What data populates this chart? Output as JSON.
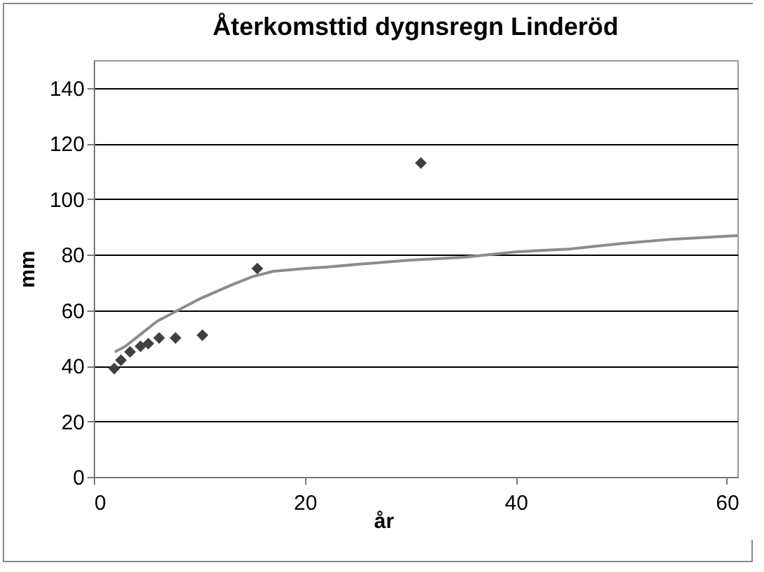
{
  "chart_data": {
    "type": "scatter",
    "title": "Återkomsttid dygnsregn Linderöd",
    "xlabel": "år",
    "ylabel": "mm",
    "xlim": [
      0,
      61
    ],
    "ylim": [
      0,
      150
    ],
    "xticks": [
      0,
      20,
      40,
      60
    ],
    "yticks": [
      0,
      20,
      40,
      60,
      80,
      100,
      120,
      140
    ],
    "grid": "y",
    "marker": "diamond",
    "series": [
      {
        "color": "#404040",
        "x": [
          31,
          15.5,
          10.3,
          7.75,
          6.2,
          5.17,
          4.43,
          3.44,
          2.58,
          1.94
        ],
        "values": [
          113,
          75,
          51,
          50,
          50,
          48,
          47,
          45,
          42,
          39
        ]
      },
      {
        "type": "line",
        "marker": "none",
        "color": "#8c8c8c",
        "x": [
          2,
          3,
          4,
          5,
          6,
          8,
          10,
          13,
          15,
          17,
          20,
          22,
          25,
          30,
          35,
          40,
          45,
          50,
          55,
          61
        ],
        "values": [
          45,
          47,
          50,
          53,
          56,
          60,
          64,
          69,
          72,
          74,
          75,
          75.5,
          76.5,
          78,
          79,
          81,
          82,
          84,
          85.6,
          86.8
        ]
      }
    ]
  }
}
